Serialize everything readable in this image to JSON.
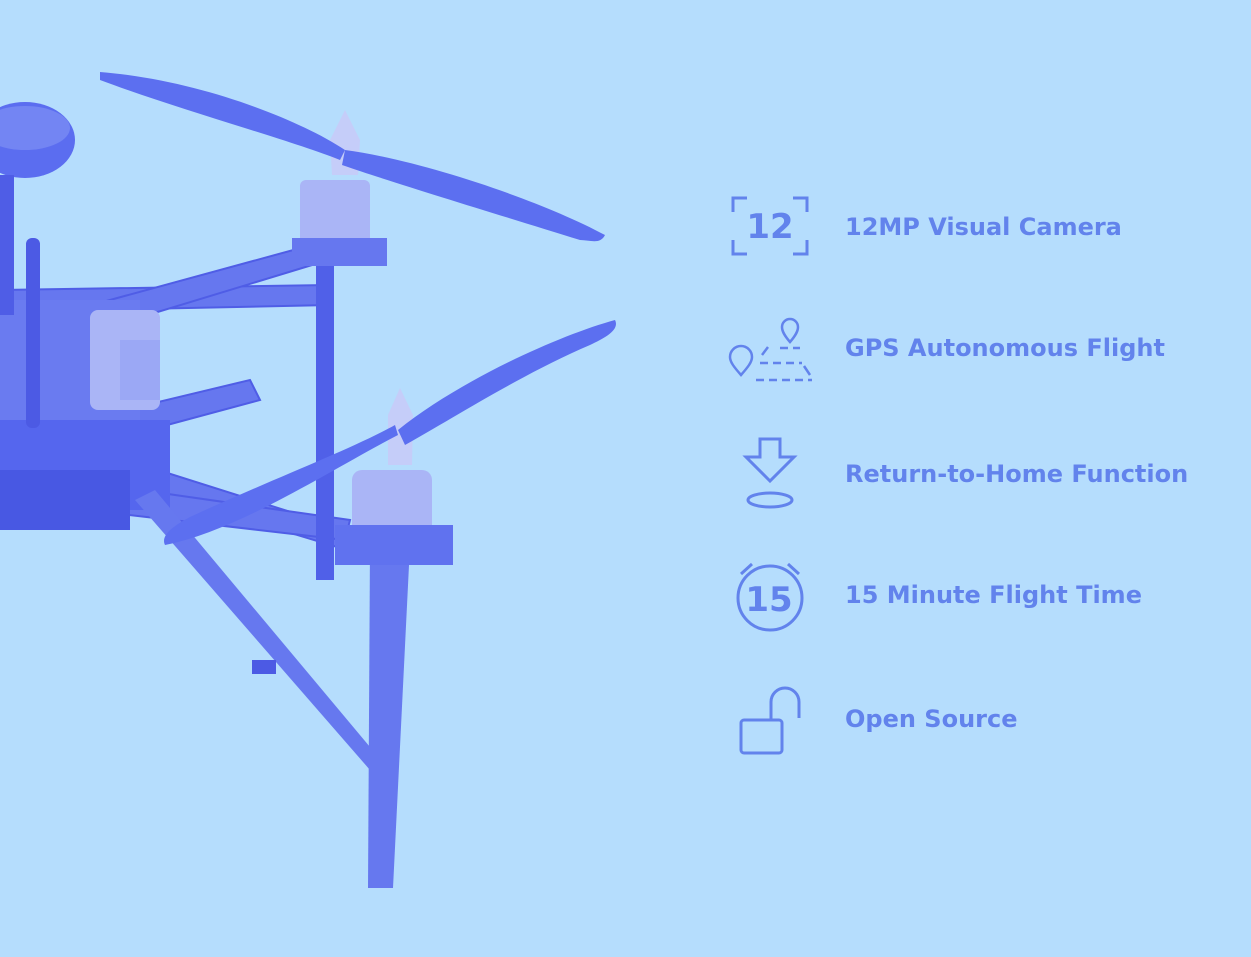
{
  "colors": {
    "background": "#b5ddfd",
    "accent": "#6283ec",
    "drone_body": "#5c6ff0",
    "drone_dark": "#4f5de6",
    "drone_light": "#8b9cf3"
  },
  "features": [
    {
      "icon": "camera-12-icon",
      "icon_text": "12",
      "label": "12MP Visual Camera"
    },
    {
      "icon": "gps-route-icon",
      "label": "GPS Autonomous Flight"
    },
    {
      "icon": "return-home-icon",
      "label": "Return-to-Home Function"
    },
    {
      "icon": "timer-15-icon",
      "icon_text": "15",
      "label": "15 Minute Flight Time"
    },
    {
      "icon": "unlock-icon",
      "label": "Open Source"
    }
  ]
}
